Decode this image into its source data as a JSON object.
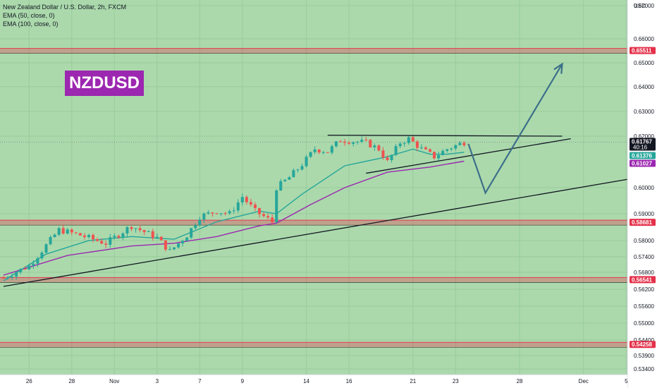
{
  "legend": {
    "symbol": "New Zealand Dollar / U.S. Dollar, 2h, FXCM",
    "ema50": "EMA (50, close, 0)",
    "ema100": "EMA (100, close, 0)"
  },
  "badge": {
    "text": "NZDUSD"
  },
  "colors": {
    "background": "#a5d6a7",
    "level_line": "#e53950",
    "level_tag": "#e5314a",
    "ema50": "#26a69a",
    "ema100": "#9c27b0",
    "bull": "#26a69a",
    "bear": "#ef5350",
    "price_tag": "#131722"
  },
  "chart_data": {
    "type": "candlestick",
    "title": "",
    "currency_label": "USD",
    "yrange": [
      0.5334,
      0.6741
    ],
    "y_ticks": [
      {
        "value": 0.67,
        "label": "0.67000"
      },
      {
        "value": 0.66,
        "label": "0.66000"
      },
      {
        "value": 0.65,
        "label": "0.65000"
      },
      {
        "value": 0.64,
        "label": "0.64000"
      },
      {
        "value": 0.63,
        "label": "0.63000"
      },
      {
        "value": 0.62,
        "label": "0.62000"
      },
      {
        "value": 0.6,
        "label": "0.60000"
      },
      {
        "value": 0.59,
        "label": "0.59000"
      },
      {
        "value": 0.58,
        "label": "0.58000"
      },
      {
        "value": 0.574,
        "label": "0.57400"
      },
      {
        "value": 0.568,
        "label": "0.56800"
      },
      {
        "value": 0.562,
        "label": "0.56200"
      },
      {
        "value": 0.556,
        "label": "0.55600"
      },
      {
        "value": 0.55,
        "label": "0.55000"
      },
      {
        "value": 0.544,
        "label": "0.54400"
      },
      {
        "value": 0.539,
        "label": "0.53900"
      },
      {
        "value": 0.534,
        "label": "0.53400"
      }
    ],
    "x_ticks": [
      {
        "bar": 6,
        "label": "26"
      },
      {
        "bar": 16,
        "label": "28"
      },
      {
        "bar": 26,
        "label": "Nov"
      },
      {
        "bar": 36,
        "label": "3"
      },
      {
        "bar": 46,
        "label": "7"
      },
      {
        "bar": 56,
        "label": "9"
      },
      {
        "bar": 71,
        "label": "14"
      },
      {
        "bar": 81,
        "label": "16"
      },
      {
        "bar": 96,
        "label": "21"
      },
      {
        "bar": 106,
        "label": "23"
      },
      {
        "bar": 121,
        "label": "28"
      },
      {
        "bar": 136,
        "label": "Dec"
      },
      {
        "bar": 146,
        "label": "5"
      }
    ],
    "price_tags": [
      {
        "value": 0.65511,
        "label": "0.65511",
        "kind": "level"
      },
      {
        "value": 0.61767,
        "label": "0.61767",
        "sub": "40:16",
        "kind": "price"
      },
      {
        "value": 0.61376,
        "label": "0.61376",
        "kind": "ema50"
      },
      {
        "value": 0.61027,
        "label": "0.61027",
        "kind": "ema100"
      },
      {
        "value": 0.58681,
        "label": "0.58681",
        "kind": "level"
      },
      {
        "value": 0.56541,
        "label": "0.56541",
        "kind": "level"
      },
      {
        "value": 0.54258,
        "label": "0.54258",
        "kind": "level"
      }
    ],
    "levels": [
      {
        "value": 0.65511,
        "type": "resistance"
      },
      {
        "value": 0.58681,
        "type": "support"
      },
      {
        "value": 0.56541,
        "type": "support"
      },
      {
        "value": 0.54258,
        "type": "support"
      }
    ],
    "current_price": 0.61767,
    "anchors": [
      {
        "bar": 0,
        "close": 0.566
      },
      {
        "bar": 6,
        "close": 0.5705
      },
      {
        "bar": 13,
        "close": 0.584
      },
      {
        "bar": 18,
        "close": 0.582
      },
      {
        "bar": 24,
        "close": 0.579
      },
      {
        "bar": 30,
        "close": 0.5855
      },
      {
        "bar": 36,
        "close": 0.581
      },
      {
        "bar": 39,
        "close": 0.576
      },
      {
        "bar": 43,
        "close": 0.582
      },
      {
        "bar": 46,
        "close": 0.589
      },
      {
        "bar": 50,
        "close": 0.591
      },
      {
        "bar": 53,
        "close": 0.59
      },
      {
        "bar": 56,
        "close": 0.5965
      },
      {
        "bar": 59,
        "close": 0.591
      },
      {
        "bar": 63,
        "close": 0.587
      },
      {
        "bar": 64,
        "close": 0.6
      },
      {
        "bar": 67,
        "close": 0.604
      },
      {
        "bar": 70,
        "close": 0.609
      },
      {
        "bar": 73,
        "close": 0.615
      },
      {
        "bar": 76,
        "close": 0.614
      },
      {
        "bar": 79,
        "close": 0.6185
      },
      {
        "bar": 82,
        "close": 0.618
      },
      {
        "bar": 85,
        "close": 0.6175
      },
      {
        "bar": 88,
        "close": 0.615
      },
      {
        "bar": 90,
        "close": 0.61
      },
      {
        "bar": 93,
        "close": 0.6175
      },
      {
        "bar": 95,
        "close": 0.619
      },
      {
        "bar": 98,
        "close": 0.615
      },
      {
        "bar": 101,
        "close": 0.612
      },
      {
        "bar": 104,
        "close": 0.615
      },
      {
        "bar": 107,
        "close": 0.617
      },
      {
        "bar": 108,
        "close": 0.61767
      }
    ],
    "ema50": [
      {
        "bar": 0,
        "value": 0.565
      },
      {
        "bar": 10,
        "value": 0.575
      },
      {
        "bar": 20,
        "value": 0.58
      },
      {
        "bar": 30,
        "value": 0.5815
      },
      {
        "bar": 40,
        "value": 0.5805
      },
      {
        "bar": 50,
        "value": 0.587
      },
      {
        "bar": 60,
        "value": 0.591
      },
      {
        "bar": 64,
        "value": 0.59
      },
      {
        "bar": 70,
        "value": 0.5975
      },
      {
        "bar": 80,
        "value": 0.6085
      },
      {
        "bar": 90,
        "value": 0.612
      },
      {
        "bar": 96,
        "value": 0.615
      },
      {
        "bar": 100,
        "value": 0.613
      },
      {
        "bar": 104,
        "value": 0.613
      },
      {
        "bar": 108,
        "value": 0.61376
      }
    ],
    "ema100": [
      {
        "bar": 0,
        "value": 0.567
      },
      {
        "bar": 15,
        "value": 0.5745
      },
      {
        "bar": 30,
        "value": 0.578
      },
      {
        "bar": 40,
        "value": 0.579
      },
      {
        "bar": 50,
        "value": 0.5815
      },
      {
        "bar": 60,
        "value": 0.5855
      },
      {
        "bar": 64,
        "value": 0.5865
      },
      {
        "bar": 72,
        "value": 0.5935
      },
      {
        "bar": 80,
        "value": 0.6
      },
      {
        "bar": 90,
        "value": 0.606
      },
      {
        "bar": 100,
        "value": 0.608
      },
      {
        "bar": 108,
        "value": 0.61027
      }
    ],
    "trendlines": [
      {
        "kind": "long-support",
        "from": {
          "bar": 0,
          "value": 0.563
        },
        "to": {
          "bar": 149,
          "value": 0.604
        }
      },
      {
        "kind": "top-resistance",
        "from": {
          "bar": 76,
          "value": 0.6204
        },
        "to": {
          "bar": 131,
          "value": 0.62
        }
      },
      {
        "kind": "rising-support",
        "from": {
          "bar": 85,
          "value": 0.6056
        },
        "to": {
          "bar": 133,
          "value": 0.619
        }
      },
      {
        "kind": "emas-bracket",
        "from": {
          "bar": 75,
          "value": 0.6205
        },
        "to": {
          "bar": 108,
          "value": 0.6205
        }
      }
    ],
    "projection": [
      {
        "bar": 109,
        "value": 0.617
      },
      {
        "bar": 113,
        "value": 0.598
      },
      {
        "bar": 131,
        "value": 0.6495
      }
    ]
  }
}
